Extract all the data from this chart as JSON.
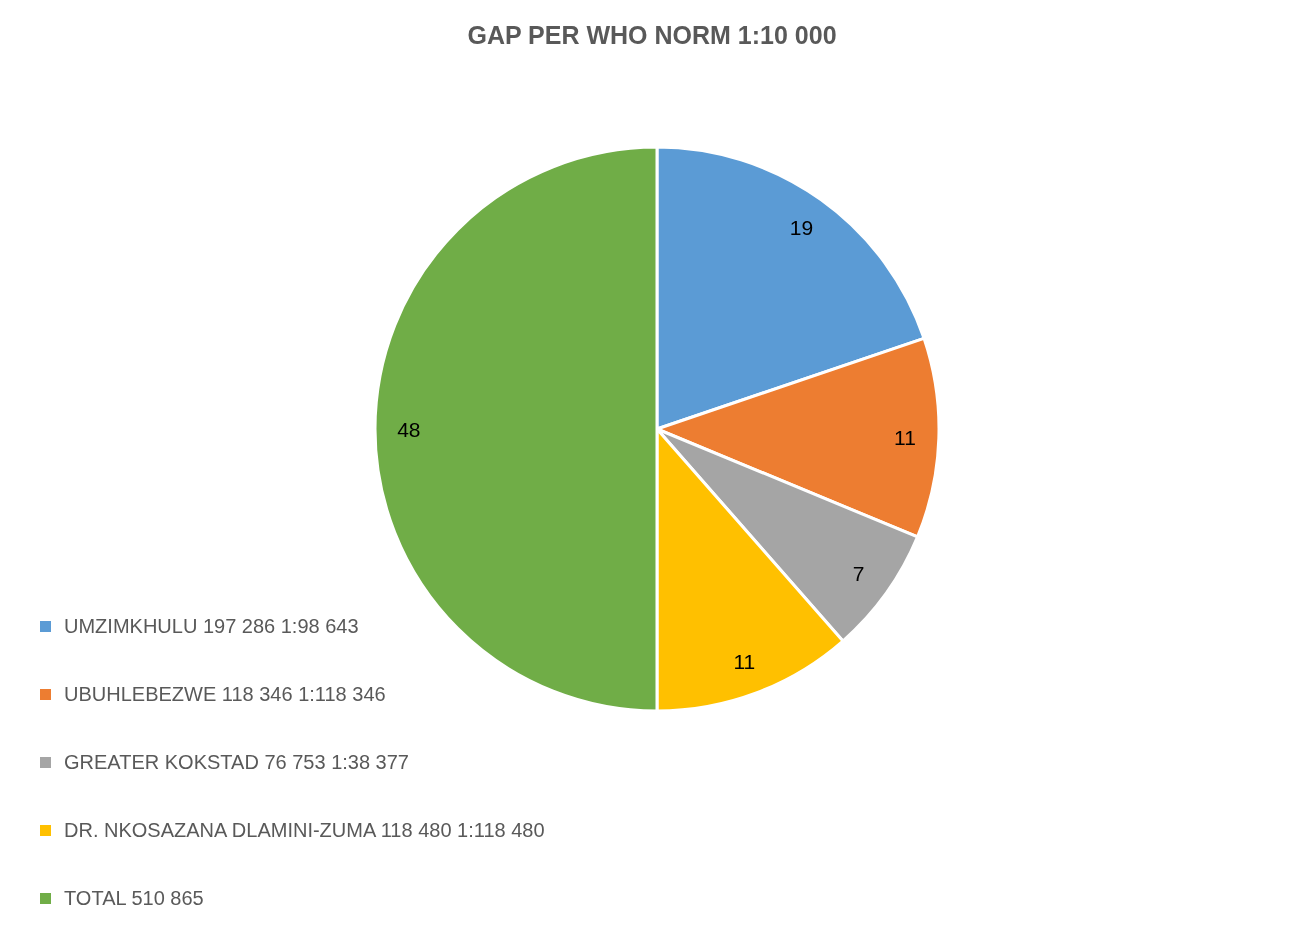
{
  "chart_data": {
    "type": "pie",
    "title": "GAP PER WHO NORM 1:10 000",
    "categories": [
      "UMZIMKHULU 197 286 1:98 643",
      "UBUHLEBEZWE 118 346 1:118 346",
      "GREATER KOKSTAD 76 753 1:38 377",
      "DR. NKOSAZANA DLAMINI-ZUMA 118 480 1:118 480",
      "TOTAL 510 865"
    ],
    "values": [
      19,
      11,
      7,
      11,
      48
    ],
    "colors": [
      "#5b9bd5",
      "#ed7d31",
      "#a5a5a5",
      "#ffc000",
      "#70ad47"
    ],
    "data_labels": true,
    "legend": "bottom left"
  }
}
